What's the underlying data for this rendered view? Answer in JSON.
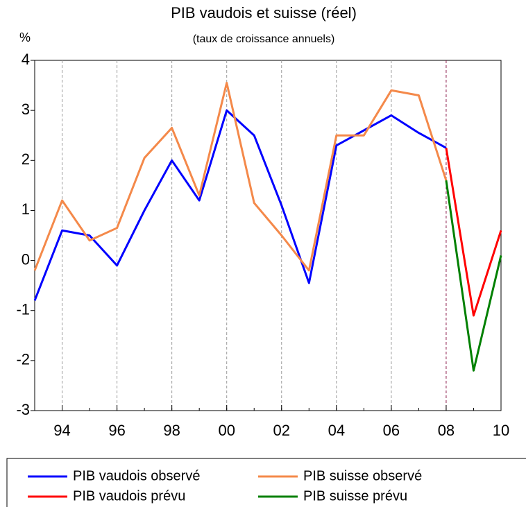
{
  "chart_data": {
    "type": "line",
    "title": "PIB vaudois et suisse (réel)",
    "subtitle": "(taux de croissance annuels)",
    "y_label": "%",
    "x": [
      1993,
      1994,
      1995,
      1996,
      1997,
      1998,
      1999,
      2000,
      2001,
      2002,
      2003,
      2004,
      2005,
      2006,
      2007,
      2008,
      2009,
      2010
    ],
    "series": [
      {
        "name": "PIB vaudois observé",
        "color": "#0000ff",
        "values": [
          -0.8,
          0.6,
          0.5,
          -0.1,
          1.0,
          2.0,
          1.2,
          3.0,
          2.5,
          1.1,
          -0.45,
          2.3,
          2.6,
          2.9,
          2.55,
          2.25,
          null,
          null
        ]
      },
      {
        "name": "PIB suisse observé",
        "color": "#f4894a",
        "values": [
          -0.2,
          1.2,
          0.4,
          0.65,
          2.05,
          2.65,
          1.3,
          3.55,
          1.15,
          0.5,
          -0.2,
          2.5,
          2.5,
          3.4,
          3.3,
          1.6,
          null,
          null
        ]
      },
      {
        "name": "PIB vaudois prévu",
        "color": "#ff0000",
        "values": [
          null,
          null,
          null,
          null,
          null,
          null,
          null,
          null,
          null,
          null,
          null,
          null,
          null,
          null,
          null,
          2.25,
          -1.1,
          0.6
        ]
      },
      {
        "name": "PIB suisse prévu",
        "color": "#008000",
        "values": [
          null,
          null,
          null,
          null,
          null,
          null,
          null,
          null,
          null,
          null,
          null,
          null,
          null,
          null,
          null,
          1.6,
          -2.2,
          0.1
        ]
      }
    ],
    "xlim": [
      1993,
      2010
    ],
    "xticks": [
      {
        "value": 1994,
        "label": "94"
      },
      {
        "value": 1996,
        "label": "96"
      },
      {
        "value": 1998,
        "label": "98"
      },
      {
        "value": 2000,
        "label": "00"
      },
      {
        "value": 2002,
        "label": "02"
      },
      {
        "value": 2004,
        "label": "04"
      },
      {
        "value": 2006,
        "label": "06"
      },
      {
        "value": 2008,
        "label": "08"
      },
      {
        "value": 2010,
        "label": "10"
      }
    ],
    "ylim": [
      -3,
      4
    ],
    "yticks": [
      -3,
      -2,
      -1,
      0,
      1,
      2,
      3,
      4
    ],
    "grid": "x",
    "forecast_line": {
      "x": 2008,
      "color": "#8b1a4a"
    },
    "legend": "bottom"
  }
}
